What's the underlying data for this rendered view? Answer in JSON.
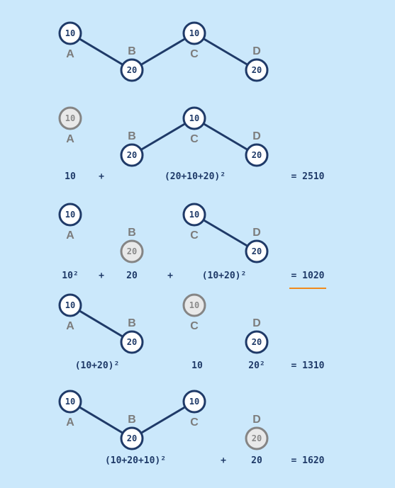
{
  "colors": {
    "background": "#cbe8fb",
    "node_active_stroke": "#1f3a68",
    "node_active_fill": "#ffffff",
    "node_inactive_stroke": "#858585",
    "node_inactive_fill": "#e9e9e9",
    "edge": "#1f3a68",
    "letter": "#7c7c7c",
    "highlight_underline": "#f08a1c"
  },
  "rows": [
    {
      "nodes": [
        {
          "id": "A",
          "label": "A",
          "value": "10",
          "active": true
        },
        {
          "id": "B",
          "label": "B",
          "value": "20",
          "active": true
        },
        {
          "id": "C",
          "label": "C",
          "value": "10",
          "active": true
        },
        {
          "id": "D",
          "label": "D",
          "value": "20",
          "active": true
        }
      ],
      "edges": [
        [
          "A",
          "B"
        ],
        [
          "B",
          "C"
        ],
        [
          "C",
          "D"
        ]
      ],
      "formula": []
    },
    {
      "nodes": [
        {
          "id": "A",
          "label": "A",
          "value": "10",
          "active": false
        },
        {
          "id": "B",
          "label": "B",
          "value": "20",
          "active": true
        },
        {
          "id": "C",
          "label": "C",
          "value": "10",
          "active": true
        },
        {
          "id": "D",
          "label": "D",
          "value": "20",
          "active": true
        }
      ],
      "edges": [
        [
          "B",
          "C"
        ],
        [
          "C",
          "D"
        ]
      ],
      "formula": [
        "10",
        "+",
        "(20+10+20)²",
        "= 2510"
      ]
    },
    {
      "nodes": [
        {
          "id": "A",
          "label": "A",
          "value": "10",
          "active": true
        },
        {
          "id": "B",
          "label": "B",
          "value": "20",
          "active": false
        },
        {
          "id": "C",
          "label": "C",
          "value": "10",
          "active": true
        },
        {
          "id": "D",
          "label": "D",
          "value": "20",
          "active": true
        }
      ],
      "edges": [
        [
          "C",
          "D"
        ]
      ],
      "formula": [
        "10²",
        "+",
        "20",
        "+",
        "(10+20)²",
        "= 1020"
      ],
      "highlight": "= 1020"
    },
    {
      "nodes": [
        {
          "id": "A",
          "label": "A",
          "value": "10",
          "active": true
        },
        {
          "id": "B",
          "label": "B",
          "value": "20",
          "active": true
        },
        {
          "id": "C",
          "label": "C",
          "value": "10",
          "active": false
        },
        {
          "id": "D",
          "label": "D",
          "value": "20",
          "active": true
        }
      ],
      "edges": [
        [
          "A",
          "B"
        ]
      ],
      "formula": [
        "(10+20)²",
        "10",
        "20²",
        "= 1310"
      ]
    },
    {
      "nodes": [
        {
          "id": "A",
          "label": "A",
          "value": "10",
          "active": true
        },
        {
          "id": "B",
          "label": "B",
          "value": "20",
          "active": true
        },
        {
          "id": "C",
          "label": "C",
          "value": "10",
          "active": true
        },
        {
          "id": "D",
          "label": "D",
          "value": "20",
          "active": false
        }
      ],
      "edges": [
        [
          "A",
          "B"
        ],
        [
          "B",
          "C"
        ]
      ],
      "formula": [
        "(10+20+10)²",
        "+",
        "20",
        "= 1620"
      ]
    }
  ]
}
